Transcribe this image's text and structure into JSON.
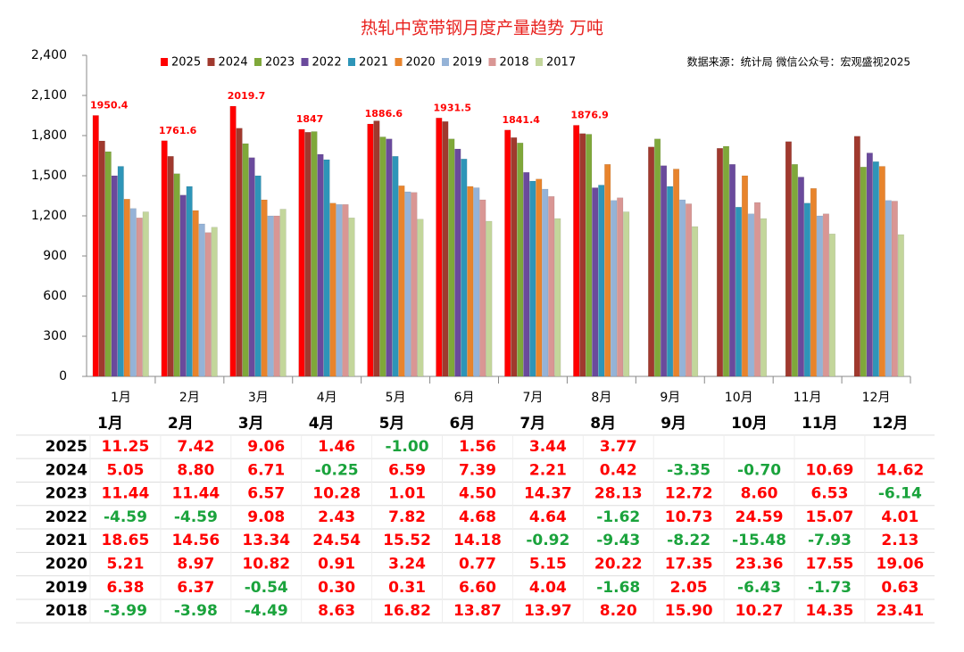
{
  "chart_data": {
    "type": "bar",
    "title": "热轧中宽带钢月度产量趋势 万吨",
    "annotation": "数据来源：统计局  微信公众号：宏观盛视2025",
    "categories": [
      "1月",
      "2月",
      "3月",
      "4月",
      "5月",
      "6月",
      "7月",
      "8月",
      "9月",
      "10月",
      "11月",
      "12月"
    ],
    "ylim": [
      0,
      2400
    ],
    "yticks": [
      0,
      300,
      600,
      900,
      {
        "value": 1200,
        "label": "1,200"
      },
      {
        "value": 1500,
        "label": "1,500"
      },
      {
        "value": 1800,
        "label": "1,800"
      },
      {
        "value": 2100,
        "label": "2,100"
      },
      {
        "value": 2400,
        "label": "2,400"
      }
    ],
    "grid": false,
    "legend": "top",
    "series": [
      {
        "name": "2025",
        "color": "#ff0000",
        "data_labels": true,
        "values": [
          1950.4,
          1761.6,
          2019.7,
          1847,
          1886.6,
          1931.5,
          1841.4,
          1876.9,
          null,
          null,
          null,
          null
        ]
      },
      {
        "name": "2024",
        "color": "#a0392e",
        "values": [
          1760,
          1645,
          1855,
          1825,
          1910,
          1905,
          1785,
          1815,
          1715,
          1705,
          1755,
          1795
        ]
      },
      {
        "name": "2023",
        "color": "#7fa83a",
        "values": [
          1680,
          1515,
          1740,
          1830,
          1790,
          1775,
          1745,
          1810,
          1775,
          1720,
          1585,
          1565
        ]
      },
      {
        "name": "2022",
        "color": "#6a4a9c",
        "values": [
          1500,
          1355,
          1635,
          1660,
          1775,
          1700,
          1525,
          1410,
          1575,
          1585,
          1490,
          1670
        ]
      },
      {
        "name": "2021",
        "color": "#2e95b8",
        "values": [
          1570,
          1420,
          1500,
          1620,
          1645,
          1625,
          1460,
          1430,
          1420,
          1265,
          1295,
          1605
        ]
      },
      {
        "name": "2020",
        "color": "#e8842c",
        "values": [
          1325,
          1240,
          1320,
          1295,
          1425,
          1420,
          1475,
          1585,
          1550,
          1500,
          1405,
          1570
        ]
      },
      {
        "name": "2019",
        "color": "#95b3d7",
        "values": [
          1255,
          1140,
          1200,
          1285,
          1380,
          1410,
          1400,
          1315,
          1320,
          1215,
          1200,
          1315
        ]
      },
      {
        "name": "2018",
        "color": "#d99694",
        "values": [
          1185,
          1075,
          1200,
          1285,
          1375,
          1320,
          1345,
          1335,
          1290,
          1300,
          1215,
          1310
        ]
      },
      {
        "name": "2017",
        "color": "#c3d69b",
        "values": [
          1230,
          1115,
          1250,
          1185,
          1175,
          1160,
          1180,
          1230,
          1120,
          1180,
          1065,
          1060
        ]
      }
    ]
  },
  "table": {
    "columns": [
      "1月",
      "2月",
      "3月",
      "4月",
      "5月",
      "6月",
      "7月",
      "8月",
      "9月",
      "10月",
      "11月",
      "12月"
    ],
    "rows": [
      {
        "year": "2025",
        "cells": [
          "11.25",
          "7.42",
          "9.06",
          "1.46",
          "-1.00",
          "1.56",
          "3.44",
          "3.77",
          null,
          null,
          null,
          null
        ]
      },
      {
        "year": "2024",
        "cells": [
          "5.05",
          "8.80",
          "6.71",
          "-0.25",
          "6.59",
          "7.39",
          "2.21",
          "0.42",
          "-3.35",
          "-0.70",
          "10.69",
          "14.62"
        ]
      },
      {
        "year": "2023",
        "cells": [
          "11.44",
          "11.44",
          "6.57",
          "10.28",
          "1.01",
          "4.50",
          "14.37",
          "28.13",
          "12.72",
          "8.60",
          "6.53",
          "-6.14"
        ]
      },
      {
        "year": "2022",
        "cells": [
          "-4.59",
          "-4.59",
          "9.08",
          "2.43",
          "7.82",
          "4.68",
          "4.64",
          "-1.62",
          "10.73",
          "24.59",
          "15.07",
          "4.01"
        ]
      },
      {
        "year": "2021",
        "cells": [
          "18.65",
          "14.56",
          "13.34",
          "24.54",
          "15.52",
          "14.18",
          "-0.92",
          "-9.43",
          "-8.22",
          "-15.48",
          "-7.93",
          "2.13"
        ]
      },
      {
        "year": "2020",
        "cells": [
          "5.21",
          "8.97",
          "10.82",
          "0.91",
          "3.24",
          "0.77",
          "5.15",
          "20.22",
          "17.35",
          "23.36",
          "17.55",
          "19.06"
        ]
      },
      {
        "year": "2019",
        "cells": [
          "6.38",
          "6.37",
          "-0.54",
          "0.30",
          "0.31",
          "6.60",
          "4.04",
          "-1.68",
          "2.05",
          "-6.43",
          "-1.73",
          "0.63"
        ]
      },
      {
        "year": "2018",
        "cells": [
          "-3.99",
          "-3.98",
          "-4.49",
          "8.63",
          "16.82",
          "13.87",
          "13.97",
          "8.20",
          "15.90",
          "10.27",
          "14.35",
          "23.41"
        ]
      }
    ]
  }
}
